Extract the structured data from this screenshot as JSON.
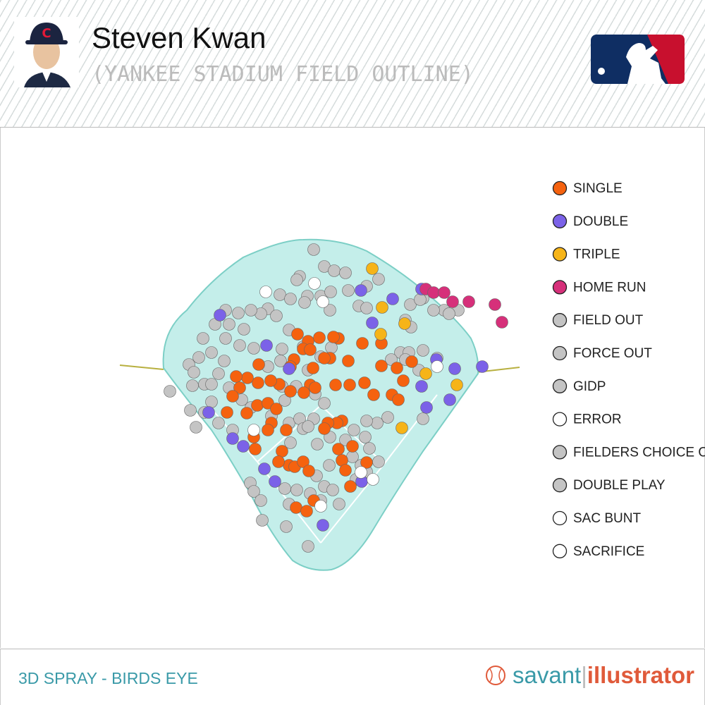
{
  "header": {
    "name": "Steven Kwan",
    "subtitle": "(YANKEE STADIUM FIELD OUTLINE)"
  },
  "legend": {
    "items": [
      {
        "label": "SINGLE",
        "color": "#f5620f"
      },
      {
        "label": "DOUBLE",
        "color": "#7b62e8"
      },
      {
        "label": "TRIPLE",
        "color": "#f6b418"
      },
      {
        "label": "HOME RUN",
        "color": "#d6307a"
      },
      {
        "label": "FIELD OUT",
        "color": "#c4c4c4"
      },
      {
        "label": "FORCE OUT",
        "color": "#c4c4c4"
      },
      {
        "label": "GIDP",
        "color": "#c4c4c4"
      },
      {
        "label": "ERROR",
        "color": "#ffffff"
      },
      {
        "label": "FIELDERS CHOICE OUT",
        "color": "#c4c4c4"
      },
      {
        "label": "DOUBLE PLAY",
        "color": "#c4c4c4"
      },
      {
        "label": "SAC BUNT",
        "color": "#ffffff"
      },
      {
        "label": "SACRIFICE",
        "color": "#ffffff"
      }
    ]
  },
  "footer": {
    "title": "3D SPRAY - BIRDS EYE",
    "logo": {
      "left": "savant",
      "right": "illustrator"
    }
  }
}
